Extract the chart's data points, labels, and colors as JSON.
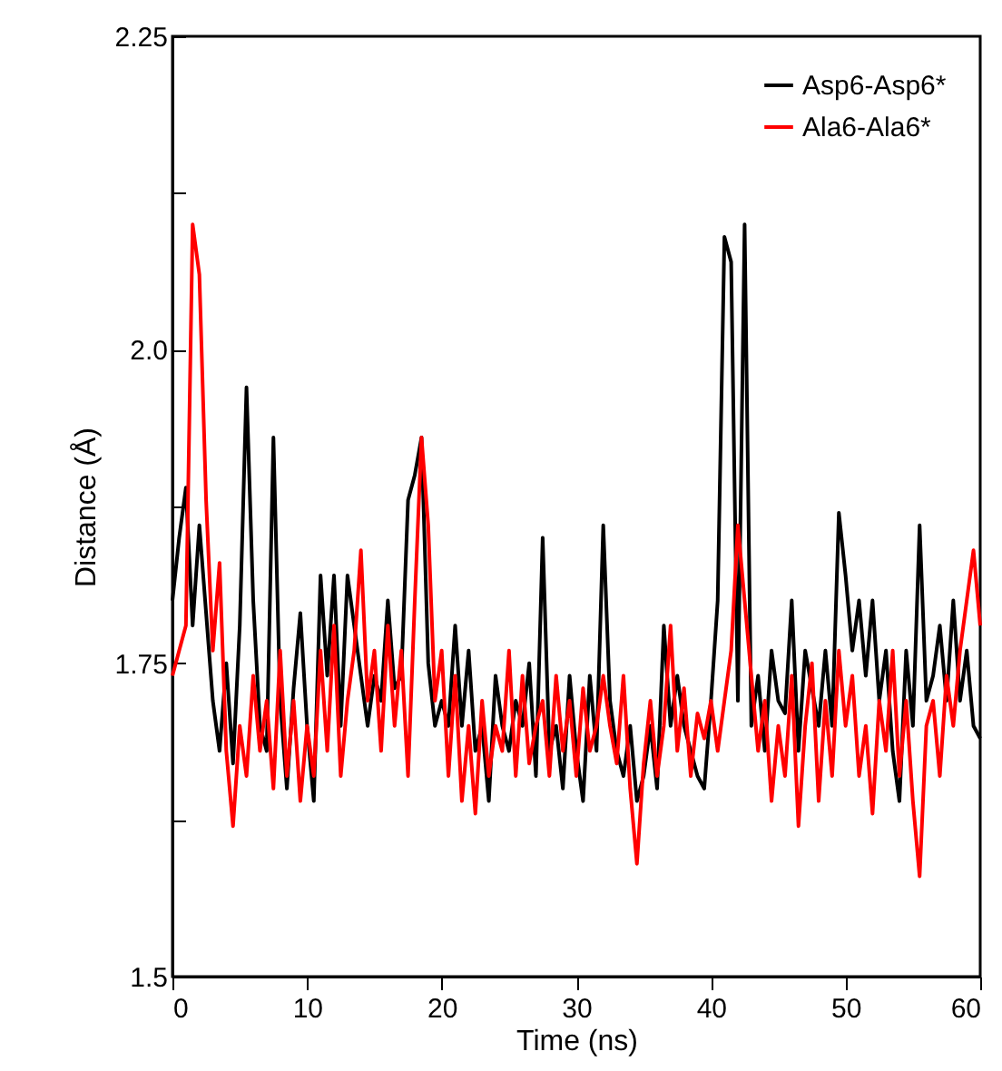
{
  "chart_data": {
    "type": "line",
    "xlabel": "Time (ns)",
    "ylabel": "Distance (Å)",
    "x": [
      0,
      0.5,
      1,
      1.5,
      2,
      2.5,
      3,
      3.5,
      4,
      4.5,
      5,
      5.5,
      6,
      6.5,
      7,
      7.5,
      8,
      8.5,
      9,
      9.5,
      10,
      10.5,
      11,
      11.5,
      12,
      12.5,
      13,
      13.5,
      14,
      14.5,
      15,
      15.5,
      16,
      16.5,
      17,
      17.5,
      18,
      18.5,
      19,
      19.5,
      20,
      20.5,
      21,
      21.5,
      22,
      22.5,
      23,
      23.5,
      24,
      24.5,
      25,
      25.5,
      26,
      26.5,
      27,
      27.5,
      28,
      28.5,
      29,
      29.5,
      30,
      30.5,
      31,
      31.5,
      32,
      32.5,
      33,
      33.5,
      34,
      34.5,
      35,
      35.5,
      36,
      36.5,
      37,
      37.5,
      38,
      38.5,
      39,
      39.5,
      40,
      40.5,
      41,
      41.5,
      42,
      42.5,
      43,
      43.5,
      44,
      44.5,
      45,
      45.5,
      46,
      46.5,
      47,
      47.5,
      48,
      48.5,
      49,
      49.5,
      50,
      50.5,
      51,
      51.5,
      52,
      52.5,
      53,
      53.5,
      54,
      54.5,
      55,
      55.5,
      56,
      56.5,
      57,
      57.5,
      58,
      58.5,
      59,
      59.5,
      60
    ],
    "series": [
      {
        "name": "Asp6-Asp6*",
        "color": "#000000",
        "values": [
          1.8,
          1.85,
          1.89,
          1.78,
          1.86,
          1.79,
          1.72,
          1.68,
          1.75,
          1.67,
          1.78,
          1.97,
          1.8,
          1.7,
          1.68,
          1.93,
          1.72,
          1.65,
          1.73,
          1.79,
          1.7,
          1.64,
          1.82,
          1.74,
          1.82,
          1.7,
          1.82,
          1.78,
          1.74,
          1.7,
          1.74,
          1.72,
          1.8,
          1.73,
          1.74,
          1.88,
          1.9,
          1.93,
          1.75,
          1.7,
          1.72,
          1.7,
          1.78,
          1.7,
          1.76,
          1.68,
          1.7,
          1.64,
          1.74,
          1.7,
          1.68,
          1.72,
          1.7,
          1.75,
          1.66,
          1.85,
          1.68,
          1.7,
          1.65,
          1.74,
          1.68,
          1.64,
          1.74,
          1.68,
          1.86,
          1.72,
          1.68,
          1.66,
          1.7,
          1.64,
          1.66,
          1.7,
          1.65,
          1.78,
          1.7,
          1.74,
          1.7,
          1.68,
          1.66,
          1.65,
          1.72,
          1.8,
          2.09,
          2.07,
          1.72,
          2.1,
          1.7,
          1.74,
          1.68,
          1.76,
          1.72,
          1.71,
          1.8,
          1.68,
          1.76,
          1.73,
          1.7,
          1.76,
          1.7,
          1.87,
          1.82,
          1.76,
          1.8,
          1.74,
          1.8,
          1.72,
          1.76,
          1.68,
          1.64,
          1.76,
          1.7,
          1.86,
          1.72,
          1.74,
          1.78,
          1.72,
          1.8,
          1.72,
          1.76,
          1.7,
          1.69
        ]
      },
      {
        "name": "Ala6-Ala6*",
        "color": "#ff0000",
        "values": [
          1.74,
          1.76,
          1.78,
          2.1,
          2.06,
          1.88,
          1.76,
          1.83,
          1.68,
          1.62,
          1.7,
          1.66,
          1.74,
          1.68,
          1.72,
          1.65,
          1.76,
          1.66,
          1.72,
          1.64,
          1.7,
          1.66,
          1.76,
          1.68,
          1.78,
          1.66,
          1.72,
          1.76,
          1.84,
          1.72,
          1.76,
          1.68,
          1.78,
          1.7,
          1.76,
          1.66,
          1.8,
          1.93,
          1.86,
          1.72,
          1.76,
          1.66,
          1.74,
          1.64,
          1.7,
          1.63,
          1.72,
          1.66,
          1.7,
          1.68,
          1.76,
          1.66,
          1.74,
          1.67,
          1.7,
          1.72,
          1.66,
          1.74,
          1.68,
          1.72,
          1.66,
          1.73,
          1.68,
          1.7,
          1.74,
          1.7,
          1.67,
          1.74,
          1.65,
          1.59,
          1.67,
          1.72,
          1.66,
          1.7,
          1.78,
          1.68,
          1.73,
          1.66,
          1.71,
          1.69,
          1.72,
          1.68,
          1.72,
          1.76,
          1.86,
          1.8,
          1.74,
          1.68,
          1.72,
          1.64,
          1.7,
          1.66,
          1.74,
          1.62,
          1.7,
          1.75,
          1.64,
          1.72,
          1.66,
          1.76,
          1.7,
          1.74,
          1.66,
          1.7,
          1.63,
          1.72,
          1.68,
          1.76,
          1.66,
          1.72,
          1.64,
          1.58,
          1.7,
          1.72,
          1.66,
          1.74,
          1.7,
          1.76,
          1.8,
          1.84,
          1.78
        ]
      }
    ],
    "xlim": [
      0,
      60
    ],
    "xticks": [
      0,
      10,
      20,
      30,
      40,
      50,
      60
    ],
    "ylim": [
      1.5,
      2.25
    ],
    "yticks": [
      1.5,
      {
        "value": 1.625,
        "label": null
      },
      1.75,
      {
        "value": 1.875,
        "label": null
      },
      "2.0",
      {
        "value": 2.125,
        "label": null
      },
      2.25
    ],
    "legend": "top right",
    "grid": false,
    "marker": "none",
    "line_style": "solid"
  }
}
